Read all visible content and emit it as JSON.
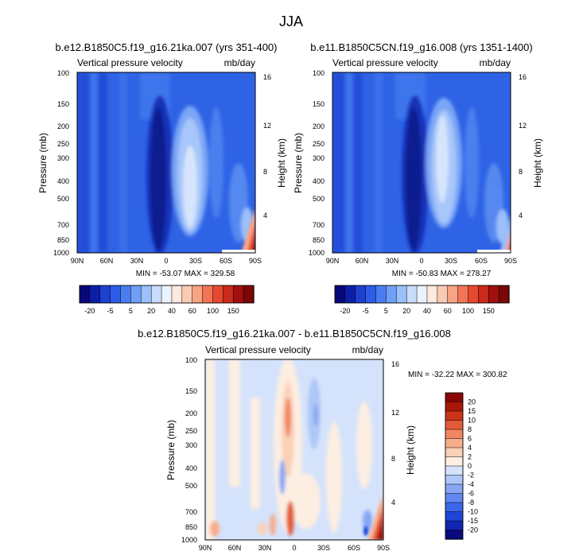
{
  "figure_title": "JJA",
  "chart_data": [
    {
      "type": "heatmap",
      "title": "b.e12.B1850C5.f19_g16.21ka.007 (yrs 351-400)",
      "subtitle_left": "Vertical pressure velocity",
      "subtitle_right": "mb/day",
      "xlabel": "",
      "ylabel": "Pressure (mb)",
      "ylabel_right": "Height (km)",
      "x_ticks": [
        "90N",
        "60N",
        "30N",
        "0",
        "30S",
        "60S",
        "90S"
      ],
      "y_ticks": [
        "100",
        "150",
        "200",
        "250",
        "300",
        "400",
        "500",
        "700",
        "850",
        "1000"
      ],
      "y_right_ticks": [
        "16",
        "12",
        "8",
        "4"
      ],
      "stats": "MIN = -53.07   MAX = 329.58",
      "colorbar_labels": [
        "-20",
        "-5",
        "5",
        "20",
        "40",
        "60",
        "100",
        "150"
      ]
    },
    {
      "type": "heatmap",
      "title": "b.e11.B1850C5CN.f19_g16.008 (yrs 1351-1400)",
      "subtitle_left": "Vertical pressure velocity",
      "subtitle_right": "mb/day",
      "xlabel": "",
      "ylabel": "Pressure (mb)",
      "ylabel_right": "Height (km)",
      "x_ticks": [
        "90N",
        "60N",
        "30N",
        "0",
        "30S",
        "60S",
        "90S"
      ],
      "y_ticks": [
        "100",
        "150",
        "200",
        "250",
        "300",
        "400",
        "500",
        "700",
        "850",
        "1000"
      ],
      "y_right_ticks": [
        "16",
        "12",
        "8",
        "4"
      ],
      "stats": "MIN = -50.83   MAX = 278.27",
      "colorbar_labels": [
        "-20",
        "-5",
        "5",
        "20",
        "40",
        "60",
        "100",
        "150"
      ]
    },
    {
      "type": "heatmap",
      "title": "b.e12.B1850C5.f19_g16.21ka.007 - b.e11.B1850C5CN.f19_g16.008",
      "subtitle_left": "Vertical pressure velocity",
      "subtitle_right": "mb/day",
      "xlabel": "",
      "ylabel": "Pressure (mb)",
      "ylabel_right": "Height (km)",
      "x_ticks": [
        "90N",
        "60N",
        "30N",
        "0",
        "30S",
        "60S",
        "90S"
      ],
      "y_ticks": [
        "100",
        "150",
        "200",
        "250",
        "300",
        "400",
        "500",
        "700",
        "850",
        "1000"
      ],
      "y_right_ticks": [
        "16",
        "12",
        "8",
        "4"
      ],
      "stats": "MIN = -32.22   MAX = 300.82",
      "colorbar_labels": [
        "20",
        "15",
        "10",
        "8",
        "6",
        "4",
        "2",
        "0",
        "-2",
        "-4",
        "-6",
        "-8",
        "-10",
        "-15",
        "-20"
      ]
    }
  ],
  "palettes": {
    "absolute": [
      "#08087a",
      "#0d1fa8",
      "#1e40d0",
      "#2c5de6",
      "#4a7ef0",
      "#6f9ff6",
      "#9cc0fa",
      "#c9dcfb",
      "#eaf2fd",
      "#fde9dd",
      "#fbcab3",
      "#f8a384",
      "#f27556",
      "#e54a30",
      "#c92a1a",
      "#a11010",
      "#7a0606"
    ],
    "difference": [
      "#0a0a7e",
      "#1026b0",
      "#1f46d6",
      "#3c66ea",
      "#6188f2",
      "#87a7f5",
      "#aec6f8",
      "#d4e3fb",
      "#fdeee2",
      "#fbd1b8",
      "#f7ad8c",
      "#f08560",
      "#e35a38",
      "#cc3418",
      "#a9170a",
      "#8a0606"
    ]
  }
}
